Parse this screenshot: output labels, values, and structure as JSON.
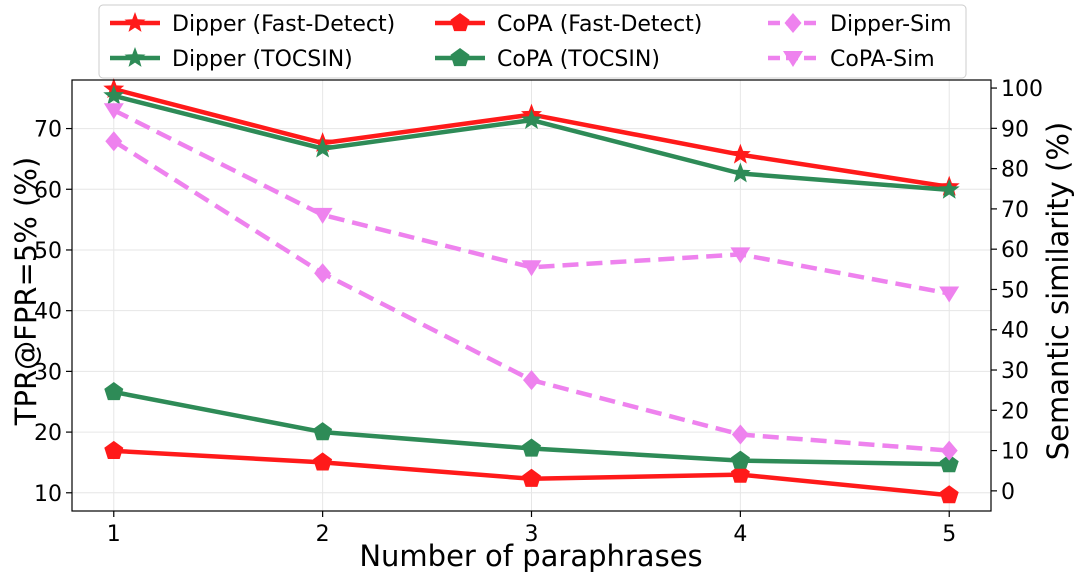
{
  "chart_data": {
    "type": "line",
    "x": [
      1,
      2,
      3,
      4,
      5
    ],
    "xlabel": "Number of paraphrases",
    "ylabel": "TPR@FPR=5% (%)",
    "y2label": "Semantic similarity (%)",
    "xlim": [
      0.8,
      5.2
    ],
    "ylim": [
      7,
      78
    ],
    "y2lim": [
      -5,
      102
    ],
    "xticks": [
      "1",
      "2",
      "3",
      "4",
      "5"
    ],
    "yticks": [
      "10",
      "20",
      "30",
      "40",
      "50",
      "60",
      "70"
    ],
    "y2ticks": [
      "0",
      "10",
      "20",
      "30",
      "40",
      "50",
      "60",
      "70",
      "80",
      "90",
      "100"
    ],
    "grid": true,
    "legend_position": "top-center",
    "series": [
      {
        "name": "Dipper (Fast-Detect)",
        "axis": "left",
        "color": "#ff1a1a",
        "marker": "star",
        "dashed": false,
        "values": [
          76.5,
          67.6,
          72.3,
          65.7,
          60.4
        ]
      },
      {
        "name": "Dipper (TOCSIN)",
        "axis": "left",
        "color": "#2e8b57",
        "marker": "star",
        "dashed": false,
        "values": [
          75.4,
          66.7,
          71.4,
          62.6,
          59.9
        ]
      },
      {
        "name": "CoPA (Fast-Detect)",
        "axis": "left",
        "color": "#ff1a1a",
        "marker": "pentagon",
        "dashed": false,
        "values": [
          16.9,
          15.0,
          12.3,
          13.0,
          9.6
        ]
      },
      {
        "name": "CoPA (TOCSIN)",
        "axis": "left",
        "color": "#2e8b57",
        "marker": "pentagon",
        "dashed": false,
        "values": [
          26.6,
          20.0,
          17.3,
          15.3,
          14.7
        ]
      },
      {
        "name": "Dipper-Sim",
        "axis": "right",
        "color": "#ee82ee",
        "marker": "diamond",
        "dashed": true,
        "values": [
          86.8,
          54.0,
          27.5,
          14.0,
          10.0
        ]
      },
      {
        "name": "CoPA-Sim",
        "axis": "right",
        "color": "#ee82ee",
        "marker": "triangle-down",
        "dashed": true,
        "values": [
          94.5,
          68.5,
          55.5,
          58.7,
          49.0
        ]
      }
    ]
  }
}
